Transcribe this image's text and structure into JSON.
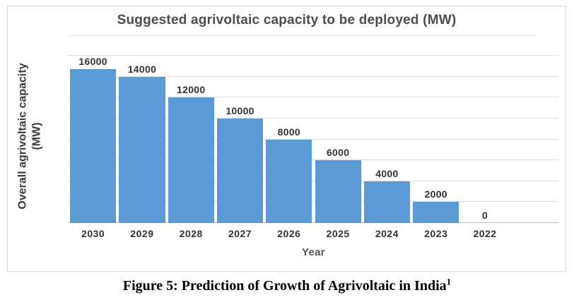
{
  "chart_data": {
    "type": "bar",
    "title": "Suggested agrivoltaic capacity to be deployed (MW)",
    "categories": [
      "2030",
      "2029",
      "2028",
      "2027",
      "2026",
      "2025",
      "2024",
      "2023",
      "2022"
    ],
    "values": [
      16000,
      14000,
      12000,
      10000,
      8000,
      6000,
      4000,
      2000,
      0
    ],
    "xlabel": "Year",
    "ylabel": "Overall agrivoltaic capacity (MW)",
    "ylabel_lines": [
      "Overall agrivoltaic capacity",
      "(MW)"
    ],
    "ylim": [
      0,
      16000
    ],
    "grid_step": 2000,
    "grid": true,
    "legend_position": "none",
    "data_labels": true,
    "bar_color": "#5B9BD5",
    "layout_hints": {
      "trailing_empty_slots": 1,
      "y_tick_labels_hidden": true
    }
  },
  "caption": {
    "text": "Figure 5: Prediction of Growth of Agrivoltaic in India",
    "superscript": "1"
  },
  "colors": {
    "bar": "#5B9BD5",
    "gridline": "#DCDCDC",
    "axis_line": "#C8C8C8",
    "title_text": "#4D4D4D",
    "label_text": "#333333",
    "axis_title_text": "#555555",
    "chart_border": "#D9D9D9",
    "caption_text": "#000000"
  }
}
